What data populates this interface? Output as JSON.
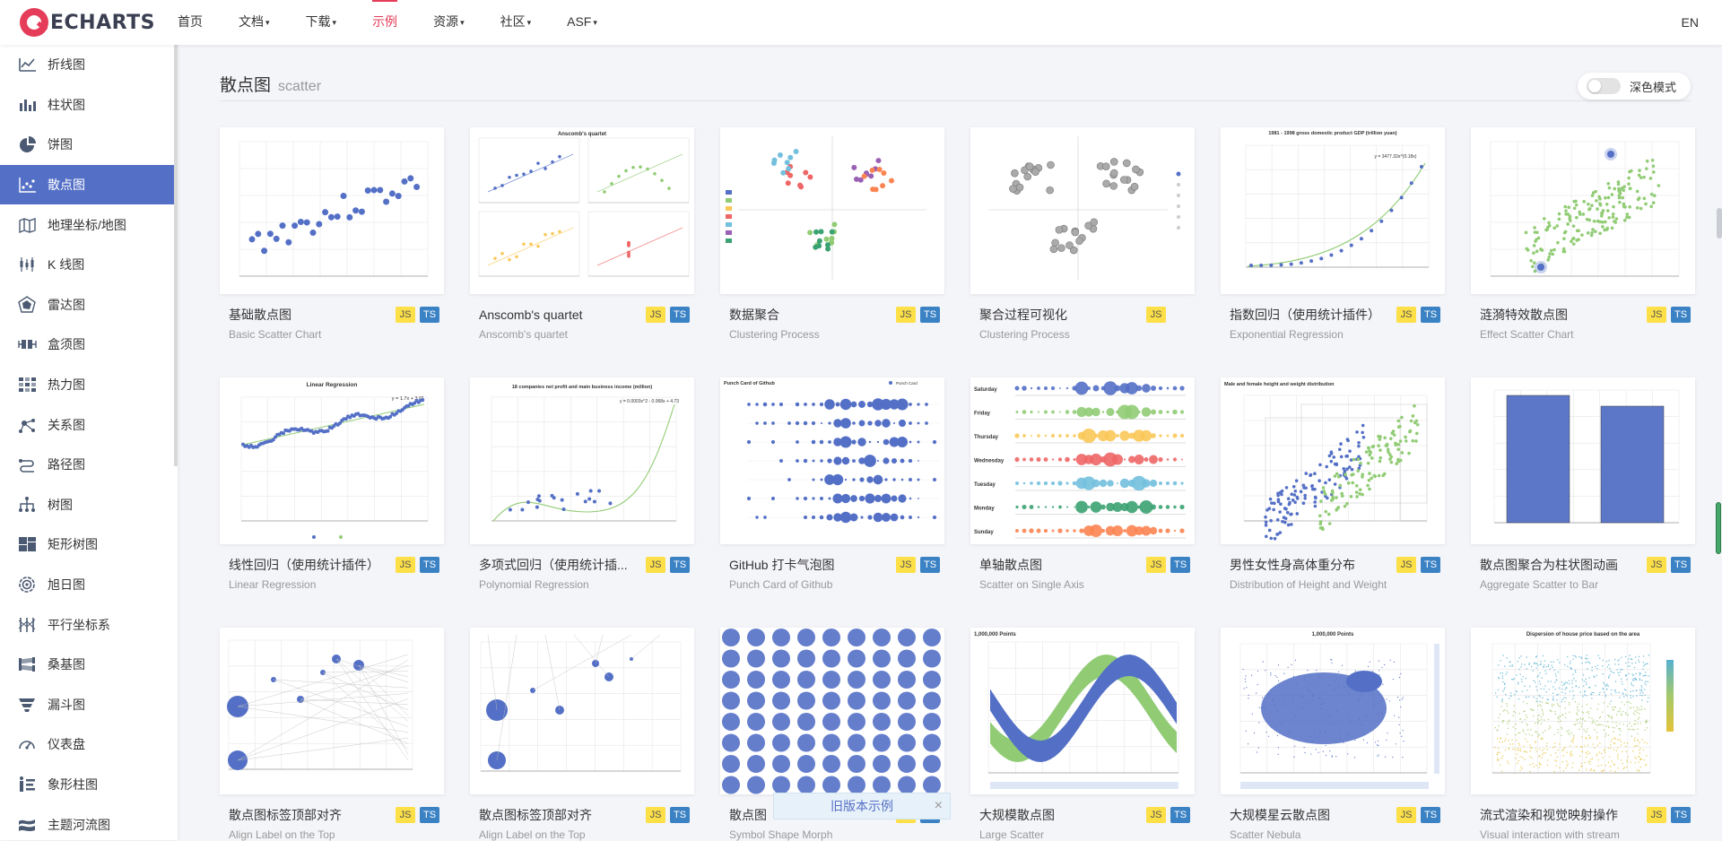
{
  "brand": {
    "name": "ECHARTS"
  },
  "nav": {
    "items": [
      {
        "label": "首页",
        "dropdown": false,
        "active": false
      },
      {
        "label": "文档",
        "dropdown": true,
        "active": false
      },
      {
        "label": "下载",
        "dropdown": true,
        "active": false
      },
      {
        "label": "示例",
        "dropdown": false,
        "active": true
      },
      {
        "label": "资源",
        "dropdown": true,
        "active": false
      },
      {
        "label": "社区",
        "dropdown": true,
        "active": false
      },
      {
        "label": "ASF",
        "dropdown": true,
        "active": false
      }
    ],
    "lang": "EN",
    "accent": "#e43c59"
  },
  "sidebar": {
    "items": [
      {
        "label": "折线图",
        "icon": "line-chart-icon"
      },
      {
        "label": "柱状图",
        "icon": "bar-chart-icon"
      },
      {
        "label": "饼图",
        "icon": "pie-chart-icon"
      },
      {
        "label": "散点图",
        "icon": "scatter-chart-icon",
        "active": true
      },
      {
        "label": "地理坐标/地图",
        "icon": "map-icon"
      },
      {
        "label": "K 线图",
        "icon": "candlestick-icon"
      },
      {
        "label": "雷达图",
        "icon": "radar-icon"
      },
      {
        "label": "盒须图",
        "icon": "boxplot-icon"
      },
      {
        "label": "热力图",
        "icon": "heatmap-icon"
      },
      {
        "label": "关系图",
        "icon": "graph-icon"
      },
      {
        "label": "路径图",
        "icon": "lines-icon"
      },
      {
        "label": "树图",
        "icon": "tree-icon"
      },
      {
        "label": "矩形树图",
        "icon": "treemap-icon"
      },
      {
        "label": "旭日图",
        "icon": "sunburst-icon"
      },
      {
        "label": "平行坐标系",
        "icon": "parallel-icon"
      },
      {
        "label": "桑基图",
        "icon": "sankey-icon"
      },
      {
        "label": "漏斗图",
        "icon": "funnel-icon"
      },
      {
        "label": "仪表盘",
        "icon": "gauge-icon"
      },
      {
        "label": "象形柱图",
        "icon": "pictorial-bar-icon"
      },
      {
        "label": "主题河流图",
        "icon": "theme-river-icon"
      }
    ],
    "active_color": "#5470c6"
  },
  "section": {
    "title": "散点图",
    "subtitle": "scatter"
  },
  "dark_mode": {
    "label": "深色模式",
    "on": false
  },
  "badges": {
    "js": "JS",
    "ts": "TS"
  },
  "cards": [
    {
      "title": "基础散点图",
      "subtitle": "Basic Scatter Chart",
      "js": true,
      "ts": true
    },
    {
      "title": "Anscomb's quartet",
      "subtitle": "Anscomb's quartet",
      "js": true,
      "ts": true
    },
    {
      "title": "数据聚合",
      "subtitle": "Clustering Process",
      "js": true,
      "ts": true
    },
    {
      "title": "聚合过程可视化",
      "subtitle": "Clustering Process",
      "js": true,
      "ts": false
    },
    {
      "title": "指数回归（使用统计插件）",
      "subtitle": "Exponential Regression",
      "js": true,
      "ts": true
    },
    {
      "title": "涟漪特效散点图",
      "subtitle": "Effect Scatter Chart",
      "js": true,
      "ts": true
    },
    {
      "title": "线性回归（使用统计插件）",
      "subtitle": "Linear Regression",
      "js": true,
      "ts": true
    },
    {
      "title": "多项式回归（使用统计插...",
      "subtitle": "Polynomial Regression",
      "js": true,
      "ts": true
    },
    {
      "title": "GitHub 打卡气泡图",
      "subtitle": "Punch Card of Github",
      "js": true,
      "ts": true
    },
    {
      "title": "单轴散点图",
      "subtitle": "Scatter on Single Axis",
      "js": true,
      "ts": true
    },
    {
      "title": "男性女性身高体重分布",
      "subtitle": "Distribution of Height and Weight",
      "js": true,
      "ts": true
    },
    {
      "title": "散点图聚合为柱状图动画",
      "subtitle": "Aggregate Scatter to Bar",
      "js": true,
      "ts": true
    },
    {
      "title": "散点图标签顶部对齐",
      "subtitle": "Align Label on the Top",
      "js": true,
      "ts": true
    },
    {
      "title": "散点图标签顶部对齐",
      "subtitle": "Align Label on the Top",
      "js": true,
      "ts": true
    },
    {
      "title": "散点图",
      "subtitle": "Symbol Shape Morph",
      "js": true,
      "ts": true
    },
    {
      "title": "大规模散点图",
      "subtitle": "Large Scatter",
      "js": true,
      "ts": true
    },
    {
      "title": "大规模星云散点图",
      "subtitle": "Scatter Nebula",
      "js": true,
      "ts": true
    },
    {
      "title": "流式渲染和视觉映射操作",
      "subtitle": "Visual interaction with stream",
      "js": true,
      "ts": true
    }
  ],
  "thumb_text": {
    "anscombe_title": "Anscomb's quartet",
    "exp_title": "1981 - 1998 gross domestic product GDP (trillion yuan)",
    "exp_eq": "y = 3477.32e^(0.18x)",
    "linreg_title": "Linear Regression",
    "linreg_eq": "y = 1.7x + 3.01",
    "poly_title": "18 companies net profit and main business income (million)",
    "poly_eq": "y = 0.0003x^2 - 0.068x + 4.73",
    "punch_title": "Punch Card of Github",
    "punch_legend": "Punch Card",
    "days": [
      "Saturday",
      "Friday",
      "Thursday",
      "Wednesday",
      "Tuesday",
      "Monday",
      "Sunday"
    ],
    "hw_title": "Male and female height and weight distribution",
    "large_title": "1,000,000 Points",
    "nebula_title": "1,000,000 Points",
    "house_title": "Dispersion of house price based on the area"
  },
  "old_banner": {
    "label": "旧版本示例"
  }
}
